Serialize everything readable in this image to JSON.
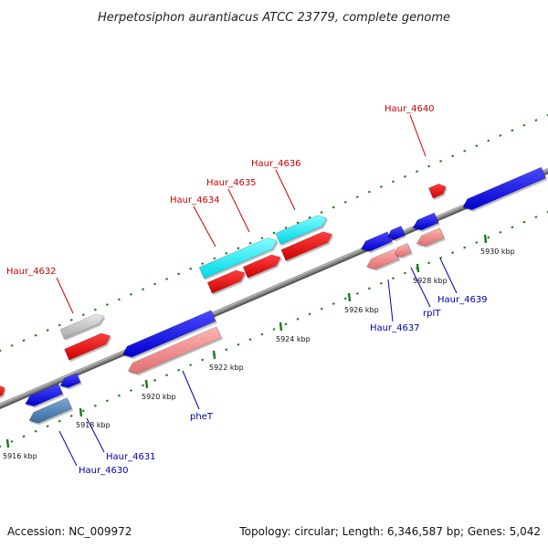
{
  "title": "Herpetosiphon aurantiacus ATCC 23779, complete genome",
  "footer": {
    "accession": "Accession: NC_009972",
    "summary": "Topology: circular; Length: 6,346,587 bp; Genes: 5,042"
  },
  "colors": {
    "strand_plus_label": "#cc0000",
    "strand_minus_label": "#0000aa",
    "backbone": "#888888",
    "tick": "#1a7a1a"
  },
  "ticks": [
    {
      "label": "5916 kbp"
    },
    {
      "label": "5918 kbp"
    },
    {
      "label": "5920 kbp"
    },
    {
      "label": "5922 kbp"
    },
    {
      "label": "5924 kbp"
    },
    {
      "label": "5926 kbp"
    },
    {
      "label": "5928 kbp"
    },
    {
      "label": "5930 kbp"
    }
  ],
  "labels": [
    {
      "text": "Haur_4632",
      "strand": "plus"
    },
    {
      "text": "Haur_4634",
      "strand": "plus"
    },
    {
      "text": "Haur_4635",
      "strand": "plus"
    },
    {
      "text": "Haur_4636",
      "strand": "plus"
    },
    {
      "text": "Haur_4640",
      "strand": "plus"
    },
    {
      "text": "pheT",
      "strand": "minus"
    },
    {
      "text": "Haur_4631",
      "strand": "minus"
    },
    {
      "text": "Haur_4630",
      "strand": "minus"
    },
    {
      "text": "Haur_4637",
      "strand": "minus"
    },
    {
      "text": "rplT",
      "strand": "minus"
    },
    {
      "text": "Haur_4639",
      "strand": "minus"
    }
  ]
}
